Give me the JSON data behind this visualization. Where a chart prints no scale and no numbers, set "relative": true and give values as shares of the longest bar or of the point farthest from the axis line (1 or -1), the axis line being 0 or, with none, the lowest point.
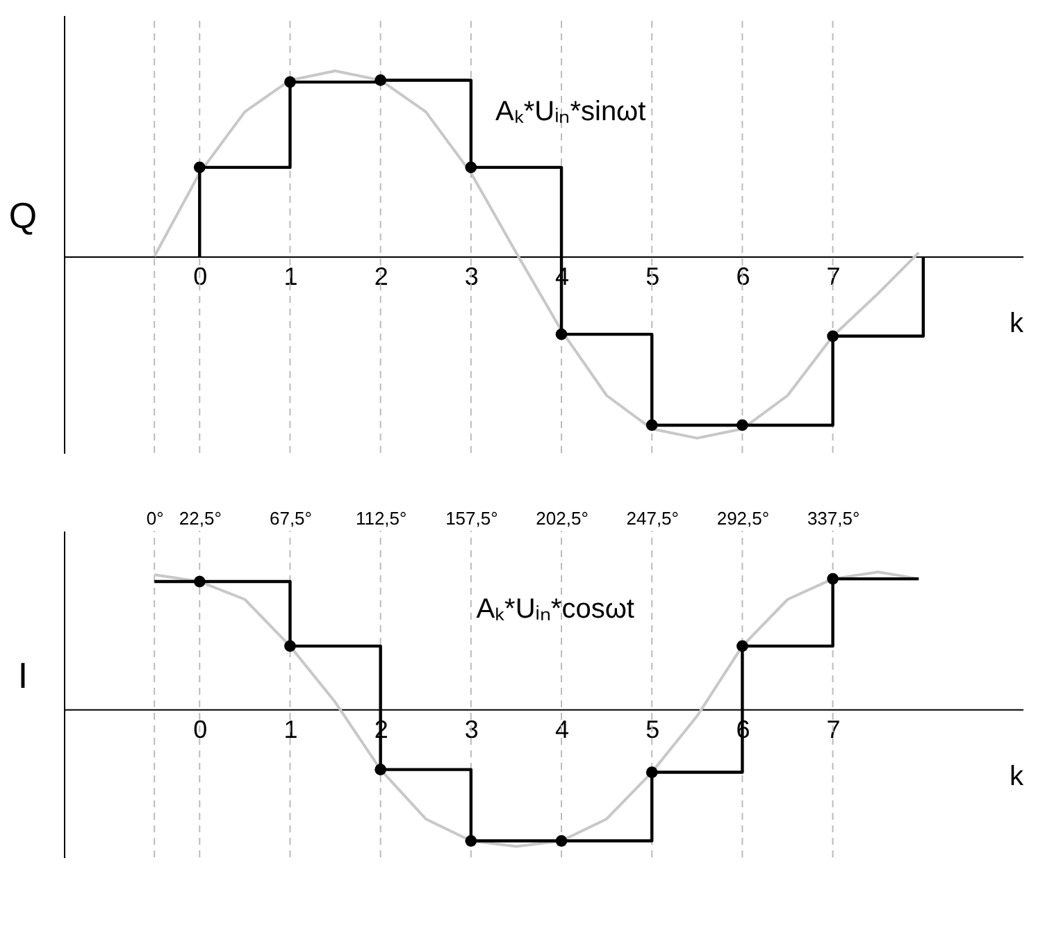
{
  "chart_data": [
    {
      "type": "line",
      "relative": true,
      "xlabel": "k",
      "ylabel": "Q",
      "xlim": [
        -1.5,
        9.1
      ],
      "xticks": [
        0,
        1,
        2,
        3,
        4,
        5,
        6,
        7
      ],
      "tick_labels": "x",
      "grid": false,
      "series": [
        {
          "type": "line",
          "color": "#c8c8c8",
          "x": [
            -0.5,
            0,
            0.5,
            1,
            1.5,
            2,
            2.5,
            3,
            3.5,
            4,
            4.5,
            5,
            5.5,
            6,
            6.5,
            7,
            7.5,
            7.95
          ],
          "values": [
            0,
            0.45,
            0.78,
            0.95,
            1.0,
            0.95,
            0.78,
            0.45,
            0.02,
            -0.4,
            -0.75,
            -0.93,
            -0.98,
            -0.93,
            -0.75,
            -0.43,
            -0.2,
            0.02
          ]
        },
        {
          "type": "step",
          "color": "#000000",
          "x": [
            0,
            0,
            1,
            2,
            3,
            4,
            5,
            6,
            7,
            8,
            8
          ],
          "values": [
            0,
            0.48,
            0.94,
            0.95,
            0.48,
            -0.42,
            -0.91,
            -0.91,
            -0.43,
            -0.43,
            0
          ]
        },
        {
          "type": "scatter",
          "color": "#000000",
          "marker": "circle",
          "x": [
            0,
            1,
            2,
            3,
            4,
            5,
            6,
            7
          ],
          "values": [
            0.48,
            0.94,
            0.95,
            0.48,
            -0.42,
            -0.91,
            -0.91,
            -0.43
          ]
        }
      ],
      "ref_lines": [
        {
          "axis": "x",
          "value": -0.5,
          "line_style": "dashed",
          "color": "#bbbbbb"
        },
        {
          "axis": "x",
          "value": 0,
          "line_style": "dashed",
          "color": "#bbbbbb"
        },
        {
          "axis": "x",
          "value": 1,
          "line_style": "dashed",
          "color": "#bbbbbb"
        },
        {
          "axis": "x",
          "value": 2,
          "line_style": "dashed",
          "color": "#bbbbbb"
        },
        {
          "axis": "x",
          "value": 3,
          "line_style": "dashed",
          "color": "#bbbbbb"
        },
        {
          "axis": "x",
          "value": 4,
          "line_style": "dashed",
          "color": "#bbbbbb"
        },
        {
          "axis": "x",
          "value": 5,
          "line_style": "dashed",
          "color": "#bbbbbb"
        },
        {
          "axis": "x",
          "value": 6,
          "line_style": "dashed",
          "color": "#bbbbbb"
        },
        {
          "axis": "x",
          "value": 7,
          "line_style": "dashed",
          "color": "#bbbbbb"
        }
      ],
      "annotations": [
        "Aₖ*Uᵢₙ*sinωt"
      ]
    },
    {
      "type": "line",
      "relative": true,
      "xlabel": "k",
      "ylabel": "I",
      "xlim": [
        -1.5,
        9.1
      ],
      "xticks": [
        0,
        1,
        2,
        3,
        4,
        5,
        6,
        7
      ],
      "x2lim": [
        -45,
        432
      ],
      "x2ticks": [
        {
          "value": 0,
          "label": "0°"
        },
        {
          "value": 22.5,
          "label": "22,5°"
        },
        {
          "value": 67.5,
          "label": "67,5°"
        },
        {
          "value": 112.5,
          "label": "112,5°"
        },
        {
          "value": 157.5,
          "label": "157,5°"
        },
        {
          "value": 202.5,
          "label": "202,5°"
        },
        {
          "value": 247.5,
          "label": "247,5°"
        },
        {
          "value": 292.5,
          "label": "292,5°"
        },
        {
          "value": 337.5,
          "label": "337,5°"
        }
      ],
      "tick_labels": "x",
      "grid": false,
      "series": [
        {
          "type": "line",
          "color": "#c8c8c8",
          "x": [
            -0.5,
            0,
            0.5,
            1,
            1.5,
            2,
            2.5,
            3,
            3.5,
            4,
            4.5,
            5,
            5.5,
            6,
            6.5,
            7,
            7.5,
            7.95
          ],
          "values": [
            0.98,
            0.93,
            0.8,
            0.46,
            0.05,
            -0.44,
            -0.8,
            -0.96,
            -1.0,
            -0.96,
            -0.8,
            -0.46,
            -0.05,
            0.46,
            0.8,
            0.95,
            1.0,
            0.95
          ]
        },
        {
          "type": "step",
          "color": "#000000",
          "x": [
            -0.5,
            0,
            1,
            2,
            3,
            4,
            5,
            6,
            7,
            7.95
          ],
          "values": [
            0.93,
            0.93,
            0.46,
            -0.44,
            -0.96,
            -0.96,
            -0.46,
            0.46,
            0.95,
            0.95
          ]
        },
        {
          "type": "scatter",
          "color": "#000000",
          "marker": "circle",
          "x": [
            0,
            1,
            2,
            3,
            4,
            5,
            6,
            7
          ],
          "values": [
            0.93,
            0.46,
            -0.44,
            -0.96,
            -0.96,
            -0.46,
            0.46,
            0.95
          ]
        }
      ],
      "ref_lines": [
        {
          "axis": "x",
          "value": -0.5,
          "line_style": "dashed",
          "color": "#bbbbbb"
        },
        {
          "axis": "x",
          "value": 0,
          "line_style": "dashed",
          "color": "#bbbbbb"
        },
        {
          "axis": "x",
          "value": 1,
          "line_style": "dashed",
          "color": "#bbbbbb"
        },
        {
          "axis": "x",
          "value": 2,
          "line_style": "dashed",
          "color": "#bbbbbb"
        },
        {
          "axis": "x",
          "value": 3,
          "line_style": "dashed",
          "color": "#bbbbbb"
        },
        {
          "axis": "x",
          "value": 4,
          "line_style": "dashed",
          "color": "#bbbbbb"
        },
        {
          "axis": "x",
          "value": 5,
          "line_style": "dashed",
          "color": "#bbbbbb"
        },
        {
          "axis": "x",
          "value": 6,
          "line_style": "dashed",
          "color": "#bbbbbb"
        },
        {
          "axis": "x",
          "value": 7,
          "line_style": "dashed",
          "color": "#bbbbbb"
        }
      ],
      "annotations": [
        "Aₖ*Uᵢₙ*cosωt"
      ]
    }
  ]
}
